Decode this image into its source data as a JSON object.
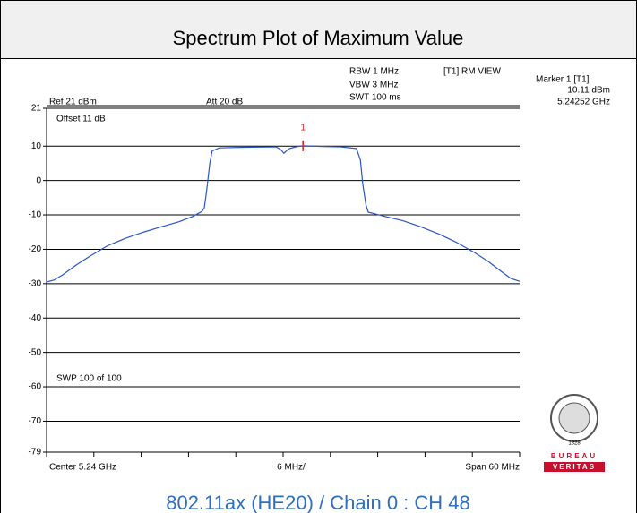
{
  "chart_data": {
    "type": "line",
    "title": "Spectrum Plot of Maximum Value",
    "caption": "802.11ax (HE20) / Chain 0 : CH 48",
    "settings_text": {
      "rbw": "RBW 1 MHz",
      "vbw": "VBW 3 MHz",
      "swt": "SWT 100 ms",
      "view": "[T1] RM VIEW",
      "ref": "Ref 21 dBm",
      "att": "Att  20 dB",
      "offset": "Offset 11 dB",
      "sweep": "SWP 100 of 100",
      "center": "Center 5.24 GHz",
      "div": "6 MHz/",
      "span": "Span 60 MHz"
    },
    "marker": {
      "title": "Marker 1 [T1]",
      "label": "1",
      "x": 5.24252,
      "value": 10.11,
      "value_label": "10.11 dBm",
      "x_label": "5.24252 GHz"
    },
    "logo": {
      "top": "BUREAU",
      "bottom": "VERITAS",
      "year": "1828"
    },
    "xlim": [
      5.21,
      5.27
    ],
    "xticks": [
      5.21,
      5.216,
      5.222,
      5.228,
      5.234,
      5.24,
      5.246,
      5.252,
      5.258,
      5.264,
      5.27
    ],
    "ylim": [
      -79,
      21
    ],
    "yticks": [
      21,
      10,
      0,
      -10,
      -20,
      -30,
      -40,
      -50,
      -60,
      -70,
      -79
    ],
    "grid": true,
    "series": [
      {
        "name": "T1",
        "color": "#2a55c8",
        "x": [
          5.21,
          5.2109,
          5.212,
          5.2138,
          5.2155,
          5.2177,
          5.22,
          5.2223,
          5.2245,
          5.2268,
          5.2285,
          5.2297,
          5.23,
          5.2303,
          5.2307,
          5.231,
          5.2319,
          5.2359,
          5.2391,
          5.2397,
          5.2401,
          5.2407,
          5.2416,
          5.24252,
          5.245,
          5.2473,
          5.2493,
          5.2498,
          5.2501,
          5.2505,
          5.2508,
          5.253,
          5.2552,
          5.2575,
          5.2598,
          5.262,
          5.2643,
          5.266,
          5.2677,
          5.2689,
          5.27
        ],
        "values": [
          -29.5,
          -29.0,
          -27.5,
          -24.5,
          -22.0,
          -19.0,
          -16.8,
          -15.0,
          -13.5,
          -12.0,
          -10.5,
          -9.0,
          -8.0,
          -3.0,
          5.0,
          8.6,
          9.5,
          9.7,
          9.8,
          9.0,
          7.9,
          9.2,
          9.8,
          10.11,
          9.9,
          9.8,
          9.3,
          6.0,
          -1.0,
          -7.0,
          -9.2,
          -10.5,
          -11.7,
          -13.5,
          -15.6,
          -18.0,
          -21.0,
          -23.5,
          -26.5,
          -28.5,
          -29.3
        ]
      }
    ]
  }
}
